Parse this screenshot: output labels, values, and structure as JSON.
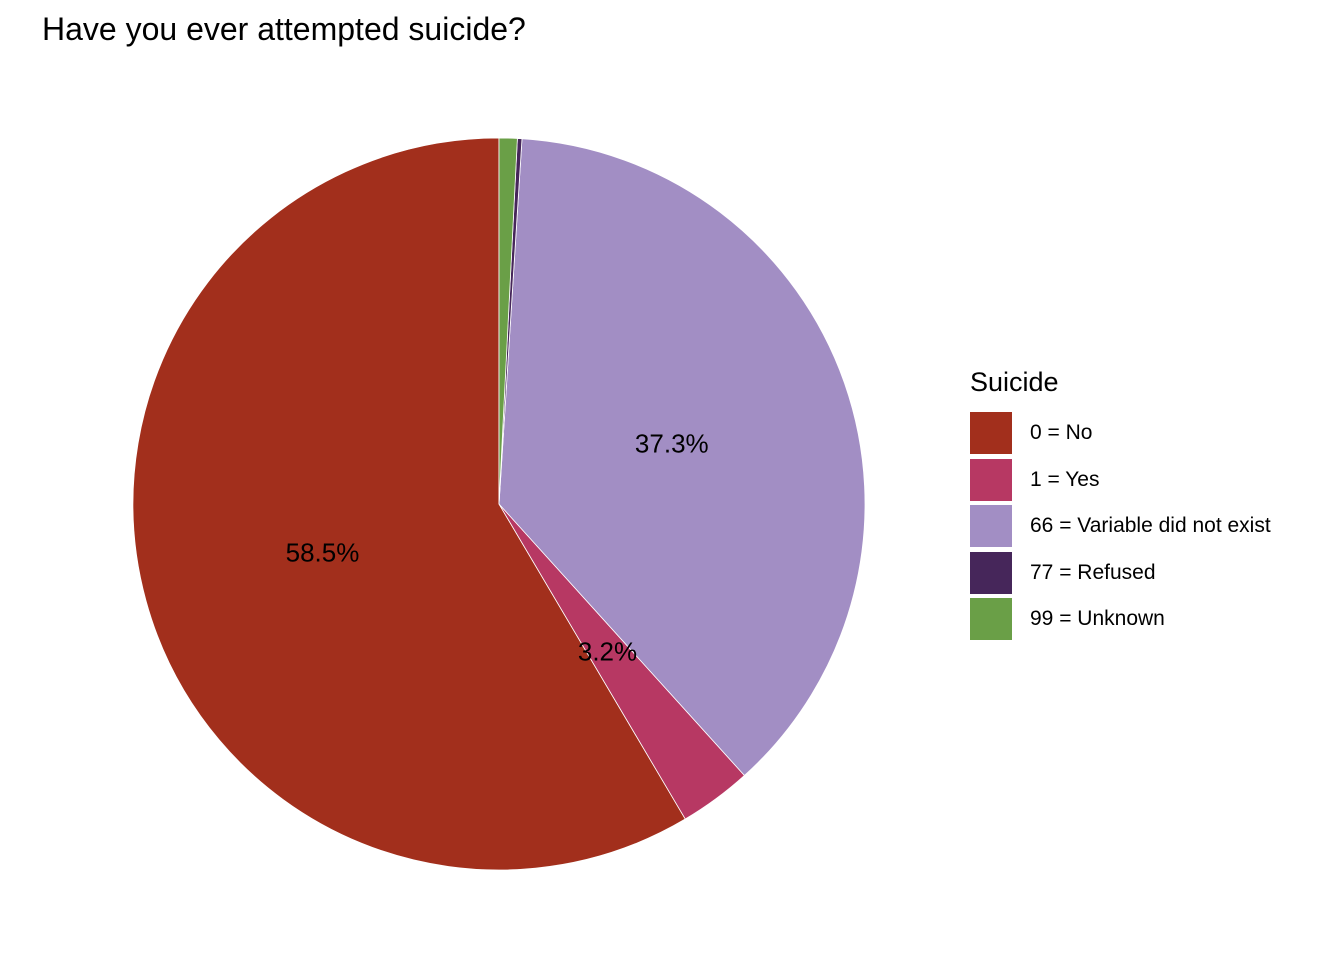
{
  "chart_data": {
    "type": "pie",
    "title": "Have you ever attempted suicide?",
    "legend": {
      "title": "Suicide",
      "position": "right"
    },
    "slices": [
      {
        "label": "0 = No",
        "value": 58.5,
        "display": "58.5%",
        "color": "#a22f1c"
      },
      {
        "label": "1 = Yes",
        "value": 3.2,
        "display": "3.2%",
        "color": "#b73863"
      },
      {
        "label": "66 = Variable did not exist",
        "value": 37.3,
        "display": "37.3%",
        "color": "#a28ec4"
      },
      {
        "label": "77 = Refused",
        "value": 0.2,
        "display": "",
        "color": "#46265a"
      },
      {
        "label": "99 = Unknown",
        "value": 0.8,
        "display": "",
        "color": "#6a9f47"
      }
    ]
  }
}
